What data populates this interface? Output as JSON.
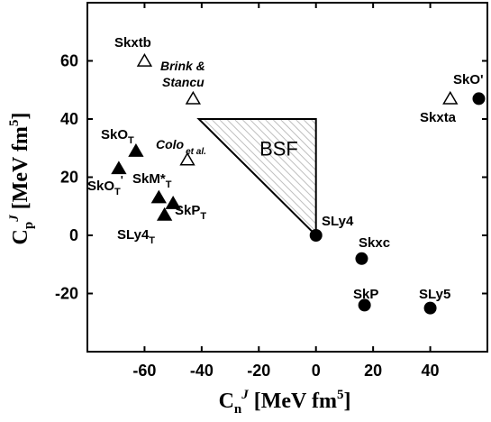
{
  "chart_data": {
    "type": "scatter",
    "xlabel": "C_n^J [MeV fm^5]",
    "ylabel": "C_p^J [MeV fm^5]",
    "xlim": [
      -80,
      60
    ],
    "ylim": [
      -40,
      80
    ],
    "xticks": [
      "-60",
      "-40",
      "-20",
      "0",
      "20",
      "40"
    ],
    "yticks": [
      "60",
      "40",
      "20",
      "0",
      "-20"
    ],
    "series": [
      {
        "marker": "filled-circle",
        "points": [
          {
            "label": "SLy4",
            "x": 0,
            "y": 0
          },
          {
            "label": "Skxc",
            "x": 16,
            "y": -8
          },
          {
            "label": "SkP",
            "x": 17,
            "y": -24
          },
          {
            "label": "SLy5",
            "x": 40,
            "y": -25
          },
          {
            "label": "SkO'",
            "x": 57,
            "y": 47
          }
        ]
      },
      {
        "marker": "filled-triangle",
        "points": [
          {
            "label": "SkO_T",
            "x": -63,
            "y": 29
          },
          {
            "label": "SkO'_T",
            "x": -69,
            "y": 23
          },
          {
            "label": "SkM*_T",
            "x": -55,
            "y": 13
          },
          {
            "label": "SkP_T",
            "x": -50,
            "y": 11
          },
          {
            "label": "SLy4_T",
            "x": -53,
            "y": 7
          }
        ]
      },
      {
        "marker": "open-triangle",
        "points": [
          {
            "label": "Skxtb",
            "x": -60,
            "y": 60
          },
          {
            "label": "Brink & Stancu",
            "x": -43,
            "y": 47
          },
          {
            "label": "Colo et al.",
            "x": -45,
            "y": 26
          },
          {
            "label": "Skxta",
            "x": 47,
            "y": 47
          }
        ]
      }
    ],
    "region": {
      "label": "BSF",
      "vertices": [
        [
          -41,
          40
        ],
        [
          0,
          40
        ],
        [
          0,
          0
        ]
      ]
    }
  },
  "labels": {
    "sly4": "SLy4",
    "skxc": "Skxc",
    "skp": "SkP",
    "sly5": "SLy5",
    "sko_prime": "SkO'",
    "skxta": "Skxta",
    "skxtb": "Skxtb",
    "brink": "Brink &",
    "stancu": "Stancu",
    "colo": "Colo",
    "etal": "et al.",
    "skot_base": "SkO",
    "skot_sub": "T",
    "skopt_base": "SkO",
    "skopt_sub": "T",
    "skopt_sup": "'",
    "skmt_base": "SkM*",
    "skmt_sub": "T",
    "skpt_base": "SkP",
    "skpt_sub": "T",
    "sly4t_base": "SLy4",
    "sly4t_sub": "T",
    "bsf": "BSF"
  },
  "axes": {
    "y_label_base": "C",
    "y_label_sub": "p",
    "y_label_sup": "J",
    "y_label_unit": " [MeV fm",
    "y_label_unit_sup": "5",
    "y_label_close": "]",
    "x_label_base": "C",
    "x_label_sub": "n",
    "x_label_sup": "J",
    "x_label_unit": " [MeV fm",
    "x_label_unit_sup": "5",
    "x_label_close": "]"
  }
}
